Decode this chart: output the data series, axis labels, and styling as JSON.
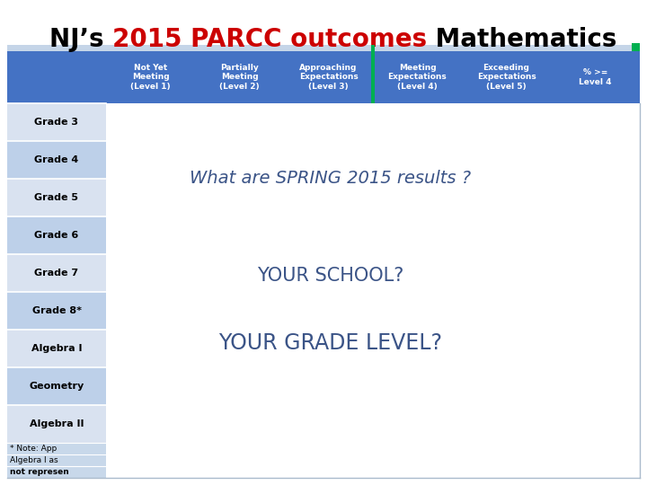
{
  "title_prefix": "NJ’s ",
  "title_red": "2015 PARCC outcomes",
  "title_suffix": " Mathematics",
  "title_fontsize": 20,
  "header_bg": "#4472C4",
  "header_light_bg": "#C5D5E8",
  "green_accent": "#00B050",
  "row_bg_dark": "#BDD0E9",
  "row_bg_light": "#D9E2F0",
  "white": "#FFFFFF",
  "text_color_dark": "#3B5487",
  "text_color_black": "#000000",
  "header_text_color": "#FFFFFF",
  "col_headers": [
    "Not Yet\nMeeting\n(Level 1)",
    "Partially\nMeeting\n(Level 2)",
    "Approaching\nExpectations\n(Level 3)",
    "Meeting\nExpectations\n(Level 4)",
    "Exceeding\nExpectations\n(Level 5)",
    "% >=\nLevel 4"
  ],
  "row_labels": [
    "Grade 3",
    "Grade 4",
    "Grade 5",
    "Grade 6",
    "Grade 7",
    "Grade 8*",
    "Algebra I",
    "Geometry",
    "Algebra II"
  ],
  "note_lines": [
    "* Note: App",
    "Algebra I as",
    "not represen"
  ],
  "body_text1": "What are SPRING 2015 results ?",
  "body_text2": "YOUR SCHOOL?",
  "body_text3": "YOUR GRADE LEVEL?",
  "body_text_color": "#3B5487",
  "body_fontsize1": 14,
  "body_fontsize2": 15,
  "body_fontsize3": 17,
  "note_fontsize": 6.5,
  "row_label_fontsize": 8,
  "header_fontsize": 6.5
}
